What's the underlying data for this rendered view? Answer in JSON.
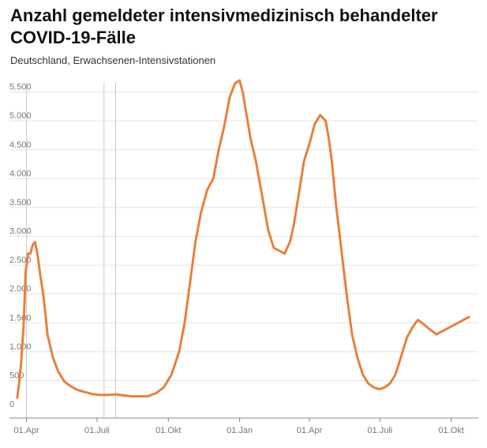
{
  "title": "Anzahl gemeldeter intensivmedizinisch behandelter COVID-19-Fälle",
  "subtitle": "Deutschland, Erwachsenen-Intensivstationen",
  "colors": {
    "line": "#e8803c",
    "grid": "#e3e3e3",
    "axis": "#888888",
    "vline": "#c8c8c8"
  },
  "chart_data": {
    "type": "line",
    "title": "Anzahl gemeldeter intensivmedizinisch behandelter COVID-19-Fälle",
    "subtitle": "Deutschland, Erwachsenen-Intensivstationen",
    "xlabel": "",
    "ylabel": "",
    "ylim": [
      0,
      5700
    ],
    "y_ticks": [
      0,
      500,
      1000,
      1500,
      2000,
      2500,
      3000,
      3500,
      4000,
      4500,
      5000,
      5500
    ],
    "y_tick_labels": [
      "0",
      "500",
      "1.000",
      "1.500",
      "2.000",
      "2.500",
      "3.000",
      "3.500",
      "4.000",
      "4.500",
      "5.000",
      "5.500"
    ],
    "x_ticks": [
      "2020-04-01",
      "2020-07-01",
      "2020-10-01",
      "2021-01-01",
      "2021-04-01",
      "2021-07-01",
      "2021-10-01"
    ],
    "x_tick_labels": [
      "01.Apr",
      "01.Juli",
      "01.Okt",
      "01.Jan",
      "01.Apr",
      "01.Juli",
      "01.Okt"
    ],
    "xlim": [
      "2020-03-10",
      "2021-11-05"
    ],
    "grid": "horizontal",
    "legend": "none",
    "reference_lines_x": [
      "2020-04-01",
      "2020-07-10",
      "2020-07-25"
    ],
    "series": [
      {
        "x": [
          "2020-03-20",
          "2020-03-22",
          "2020-03-25",
          "2020-03-28",
          "2020-03-31",
          "2020-04-03",
          "2020-04-06",
          "2020-04-09",
          "2020-04-12",
          "2020-04-15",
          "2020-04-17",
          "2020-04-19",
          "2020-04-22",
          "2020-04-25",
          "2020-04-28",
          "2020-05-05",
          "2020-05-12",
          "2020-05-20",
          "2020-05-28",
          "2020-06-05",
          "2020-06-15",
          "2020-06-25",
          "2020-07-05",
          "2020-07-15",
          "2020-07-25",
          "2020-08-05",
          "2020-08-15",
          "2020-08-25",
          "2020-09-05",
          "2020-09-15",
          "2020-09-25",
          "2020-10-05",
          "2020-10-15",
          "2020-10-22",
          "2020-10-29",
          "2020-11-05",
          "2020-11-12",
          "2020-11-20",
          "2020-11-28",
          "2020-12-05",
          "2020-12-12",
          "2020-12-19",
          "2020-12-26",
          "2021-01-01",
          "2021-01-05",
          "2021-01-10",
          "2021-01-15",
          "2021-01-22",
          "2021-01-30",
          "2021-02-07",
          "2021-02-14",
          "2021-02-21",
          "2021-02-28",
          "2021-03-07",
          "2021-03-12",
          "2021-03-18",
          "2021-03-25",
          "2021-04-01",
          "2021-04-08",
          "2021-04-15",
          "2021-04-22",
          "2021-04-26",
          "2021-04-30",
          "2021-05-05",
          "2021-05-12",
          "2021-05-19",
          "2021-05-26",
          "2021-06-02",
          "2021-06-09",
          "2021-06-16",
          "2021-06-23",
          "2021-06-30",
          "2021-07-07",
          "2021-07-14",
          "2021-07-21",
          "2021-07-28",
          "2021-08-05",
          "2021-08-12",
          "2021-08-19",
          "2021-08-26",
          "2021-09-02",
          "2021-09-07",
          "2021-09-12",
          "2021-09-19",
          "2021-09-26",
          "2021-10-03",
          "2021-10-10",
          "2021-10-17",
          "2021-10-24"
        ],
        "values": [
          200,
          400,
          800,
          1400,
          2400,
          2700,
          2700,
          2850,
          2900,
          2700,
          2500,
          2300,
          2050,
          1700,
          1300,
          900,
          650,
          480,
          400,
          340,
          300,
          265,
          250,
          250,
          260,
          240,
          225,
          225,
          230,
          280,
          380,
          600,
          1000,
          1500,
          2200,
          2900,
          3400,
          3800,
          4000,
          4500,
          4900,
          5400,
          5650,
          5700,
          5500,
          5100,
          4700,
          4300,
          3700,
          3100,
          2800,
          2750,
          2700,
          2900,
          3200,
          3700,
          4300,
          4600,
          4950,
          5100,
          5000,
          4700,
          4300,
          3600,
          2800,
          2000,
          1300,
          900,
          600,
          450,
          380,
          350,
          380,
          450,
          600,
          900,
          1250,
          1420,
          1550,
          1480,
          1400,
          1350,
          1300,
          1350,
          1400,
          1450,
          1500,
          1550,
          1600
        ]
      }
    ]
  }
}
